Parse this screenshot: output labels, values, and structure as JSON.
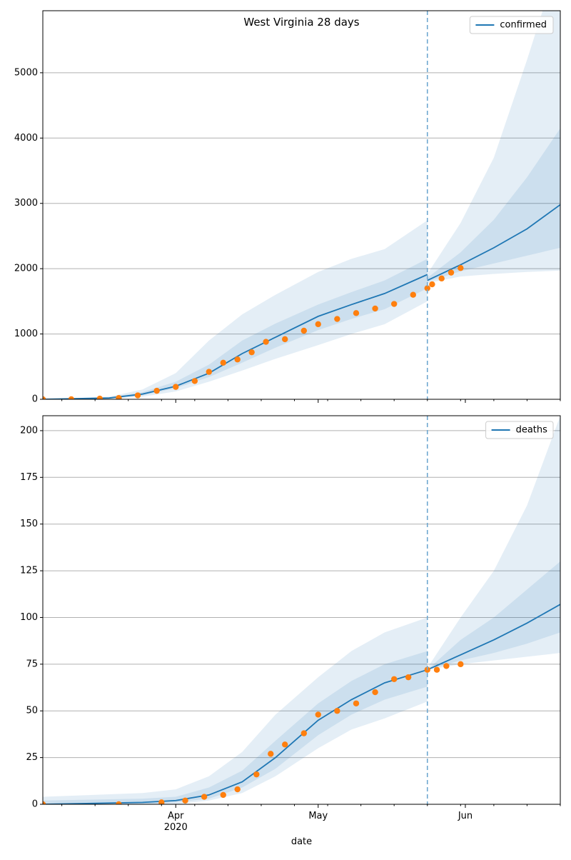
{
  "figure": {
    "title": "West Virginia 28 days",
    "xlabel": "date",
    "x_ticks": [
      {
        "date": "2020-04-01",
        "label": "Apr",
        "sublabel": "2020"
      },
      {
        "date": "2020-05-01",
        "label": "May",
        "sublabel": ""
      },
      {
        "date": "2020-06-01",
        "label": "Jun",
        "sublabel": ""
      }
    ],
    "forecast_start": "2020-05-24"
  },
  "colors": {
    "model_line": "#1f77b4",
    "observed_points": "#ff7f0e",
    "band": "#1f77b4",
    "forecast_marker": "#6fa8d0",
    "grid": "#b0b0b0"
  },
  "chart_data": [
    {
      "type": "line",
      "title": "West Virginia 28 days",
      "xlabel": "",
      "ylabel": "",
      "x_range": [
        "2020-03-04",
        "2020-06-21"
      ],
      "ylim": [
        0,
        5950
      ],
      "yticks": [
        0,
        1000,
        2000,
        3000,
        4000,
        5000
      ],
      "grid": "horizontal",
      "legend": {
        "placement": "top-right",
        "entries": [
          "confirmed"
        ]
      },
      "series": [
        {
          "name": "confirmed",
          "kind": "model",
          "fit": {
            "x": [
              "2020-03-04",
              "2020-03-18",
              "2020-03-25",
              "2020-04-01",
              "2020-04-08",
              "2020-04-15",
              "2020-04-22",
              "2020-05-01",
              "2020-05-08",
              "2020-05-15",
              "2020-05-24"
            ],
            "y": [
              0,
              20,
              80,
              200,
              400,
              700,
              950,
              1270,
              1450,
              1620,
              1910
            ]
          },
          "forecast": {
            "x": [
              "2020-05-24",
              "2020-05-31",
              "2020-06-07",
              "2020-06-14",
              "2020-06-21"
            ],
            "y": [
              1820,
              2060,
              2320,
              2610,
              2980
            ]
          }
        },
        {
          "name": "",
          "kind": "observed",
          "points": {
            "x": [
              "2020-03-04",
              "2020-03-10",
              "2020-03-16",
              "2020-03-20",
              "2020-03-24",
              "2020-03-28",
              "2020-04-01",
              "2020-04-05",
              "2020-04-08",
              "2020-04-11",
              "2020-04-14",
              "2020-04-17",
              "2020-04-20",
              "2020-04-24",
              "2020-04-28",
              "2020-05-01",
              "2020-05-05",
              "2020-05-09",
              "2020-05-13",
              "2020-05-17",
              "2020-05-21",
              "2020-05-24",
              "2020-05-25",
              "2020-05-27",
              "2020-05-29",
              "2020-05-31"
            ],
            "y": [
              0,
              0,
              10,
              20,
              60,
              130,
              190,
              280,
              420,
              560,
              610,
              720,
              880,
              920,
              1050,
              1150,
              1230,
              1320,
              1390,
              1460,
              1600,
              1700,
              1760,
              1850,
              1940,
              2010
            ]
          }
        }
      ],
      "bands": [
        {
          "x": [
            "2020-03-04",
            "2020-03-18",
            "2020-03-25",
            "2020-04-01",
            "2020-04-08",
            "2020-04-15",
            "2020-04-22",
            "2020-05-01",
            "2020-05-08",
            "2020-05-15",
            "2020-05-24"
          ],
          "outer_low": [
            0,
            10,
            40,
            120,
            270,
            440,
            620,
            830,
            1000,
            1150,
            1500
          ],
          "outer_high": [
            0,
            40,
            150,
            400,
            900,
            1300,
            1600,
            1950,
            2150,
            2300,
            2740
          ],
          "inner_low": [
            0,
            15,
            60,
            170,
            340,
            560,
            790,
            1060,
            1230,
            1380,
            1700
          ],
          "inner_high": [
            0,
            30,
            110,
            270,
            530,
            900,
            1160,
            1450,
            1640,
            1820,
            2150
          ]
        },
        {
          "x": [
            "2020-05-24",
            "2020-05-31",
            "2020-06-07",
            "2020-06-14",
            "2020-06-21"
          ],
          "outer_low": [
            1780,
            1880,
            1920,
            1950,
            1970
          ],
          "outer_high": [
            1920,
            2700,
            3700,
            5200,
            6800
          ],
          "inner_low": [
            1800,
            1960,
            2080,
            2200,
            2320
          ],
          "inner_high": [
            1860,
            2250,
            2750,
            3400,
            4150
          ]
        }
      ]
    },
    {
      "type": "line",
      "title": "",
      "xlabel": "date",
      "ylabel": "",
      "x_range": [
        "2020-03-04",
        "2020-06-21"
      ],
      "ylim": [
        0,
        208
      ],
      "yticks": [
        0,
        25,
        50,
        75,
        100,
        125,
        150,
        175,
        200
      ],
      "grid": "horizontal",
      "legend": {
        "placement": "top-right",
        "entries": [
          "deaths"
        ]
      },
      "series": [
        {
          "name": "deaths",
          "kind": "model",
          "fit": {
            "x": [
              "2020-03-04",
              "2020-03-25",
              "2020-04-01",
              "2020-04-08",
              "2020-04-15",
              "2020-04-22",
              "2020-05-01",
              "2020-05-08",
              "2020-05-15",
              "2020-05-24"
            ],
            "y": [
              0,
              1,
              2,
              5,
              12,
              25,
              45,
              56,
              65,
              72
            ]
          },
          "forecast": {
            "x": [
              "2020-05-24",
              "2020-05-31",
              "2020-06-07",
              "2020-06-14",
              "2020-06-21"
            ],
            "y": [
              72,
              80,
              88,
              97,
              107
            ]
          }
        },
        {
          "name": "",
          "kind": "observed",
          "points": {
            "x": [
              "2020-03-04",
              "2020-03-20",
              "2020-03-29",
              "2020-04-03",
              "2020-04-07",
              "2020-04-11",
              "2020-04-14",
              "2020-04-18",
              "2020-04-21",
              "2020-04-24",
              "2020-04-28",
              "2020-05-01",
              "2020-05-05",
              "2020-05-09",
              "2020-05-13",
              "2020-05-17",
              "2020-05-20",
              "2020-05-24",
              "2020-05-26",
              "2020-05-28",
              "2020-05-31"
            ],
            "y": [
              0,
              0,
              1,
              2,
              4,
              5,
              8,
              16,
              27,
              32,
              38,
              48,
              50,
              54,
              60,
              67,
              68,
              72,
              72,
              74,
              75
            ]
          }
        }
      ],
      "bands": [
        {
          "x": [
            "2020-03-04",
            "2020-03-25",
            "2020-04-01",
            "2020-04-08",
            "2020-04-15",
            "2020-04-22",
            "2020-05-01",
            "2020-05-08",
            "2020-05-15",
            "2020-05-24"
          ],
          "outer_low": [
            0,
            0,
            0,
            2,
            6,
            15,
            30,
            40,
            46,
            55
          ],
          "outer_high": [
            4,
            6,
            8,
            15,
            28,
            48,
            68,
            82,
            92,
            100
          ],
          "inner_low": [
            0,
            0,
            1,
            3,
            9,
            19,
            37,
            48,
            56,
            63
          ],
          "inner_high": [
            2,
            3,
            4,
            9,
            18,
            34,
            54,
            66,
            75,
            82
          ]
        },
        {
          "x": [
            "2020-05-24",
            "2020-05-31",
            "2020-06-07",
            "2020-06-14",
            "2020-06-21"
          ],
          "outer_low": [
            72,
            75,
            77,
            79,
            81
          ],
          "outer_high": [
            73,
            100,
            125,
            160,
            208
          ],
          "inner_low": [
            72,
            77,
            81,
            86,
            92
          ],
          "inner_high": [
            72,
            88,
            100,
            115,
            130
          ]
        }
      ]
    }
  ]
}
